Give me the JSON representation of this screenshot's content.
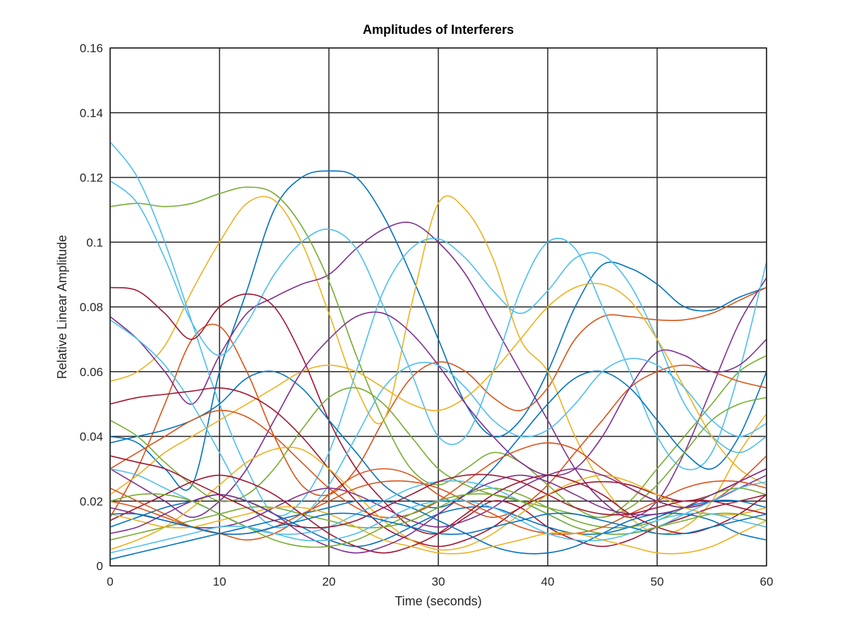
{
  "chart_data": {
    "type": "line",
    "title": "Amplitudes of Interferers",
    "xlabel": "Time (seconds)",
    "ylabel": "Relative Linear Amplitude",
    "xlim": [
      0,
      60
    ],
    "ylim": [
      0,
      0.16
    ],
    "x_ticks": [
      0,
      10,
      20,
      30,
      40,
      50,
      60
    ],
    "x_tick_labels": [
      "0",
      "10",
      "20",
      "30",
      "40",
      "50",
      "60"
    ],
    "y_ticks": [
      0,
      0.02,
      0.04,
      0.06,
      0.08,
      0.1,
      0.12,
      0.14,
      0.16
    ],
    "y_tick_labels": [
      "0",
      "0.02",
      "0.04",
      "0.06",
      "0.08",
      "0.1",
      "0.12",
      "0.14",
      "0.16"
    ],
    "grid": true,
    "legend": "none",
    "x": [
      0,
      2.5,
      5,
      7.5,
      10,
      12.5,
      15,
      17.5,
      20,
      22.5,
      25,
      27.5,
      30,
      32.5,
      35,
      37.5,
      40,
      42.5,
      45,
      47.5,
      50,
      52.5,
      55,
      57.5,
      60
    ],
    "series": [
      {
        "color": "#0072BD",
        "values": [
          0.04,
          0.038,
          0.03,
          0.025,
          0.06,
          0.085,
          0.11,
          0.12,
          0.122,
          0.12,
          0.108,
          0.09,
          0.07,
          0.05,
          0.04,
          0.045,
          0.06,
          0.08,
          0.093,
          0.092,
          0.087,
          0.08,
          0.079,
          0.083,
          0.086
        ]
      },
      {
        "color": "#D95319",
        "values": [
          0.015,
          0.03,
          0.05,
          0.07,
          0.074,
          0.06,
          0.04,
          0.025,
          0.022,
          0.03,
          0.045,
          0.058,
          0.063,
          0.06,
          0.052,
          0.048,
          0.055,
          0.07,
          0.077,
          0.077,
          0.076,
          0.076,
          0.078,
          0.082,
          0.086
        ]
      },
      {
        "color": "#EDB120",
        "values": [
          0.057,
          0.06,
          0.068,
          0.085,
          0.1,
          0.112,
          0.113,
          0.1,
          0.078,
          0.055,
          0.045,
          0.08,
          0.112,
          0.11,
          0.095,
          0.07,
          0.06,
          0.04,
          0.025,
          0.015,
          0.01,
          0.012,
          0.02,
          0.035,
          0.047
        ]
      },
      {
        "color": "#7E2F8E",
        "values": [
          0.077,
          0.07,
          0.06,
          0.05,
          0.065,
          0.078,
          0.083,
          0.087,
          0.09,
          0.098,
          0.104,
          0.106,
          0.1,
          0.09,
          0.075,
          0.06,
          0.045,
          0.03,
          0.02,
          0.015,
          0.02,
          0.035,
          0.055,
          0.075,
          0.089
        ]
      },
      {
        "color": "#77AC30",
        "values": [
          0.111,
          0.112,
          0.111,
          0.112,
          0.115,
          0.117,
          0.115,
          0.105,
          0.088,
          0.065,
          0.045,
          0.03,
          0.025,
          0.03,
          0.035,
          0.032,
          0.025,
          0.018,
          0.015,
          0.02,
          0.03,
          0.04,
          0.05,
          0.06,
          0.065
        ]
      },
      {
        "color": "#4DBEEE",
        "values": [
          0.131,
          0.12,
          0.1,
          0.075,
          0.05,
          0.03,
          0.016,
          0.02,
          0.035,
          0.06,
          0.085,
          0.098,
          0.101,
          0.095,
          0.085,
          0.078,
          0.085,
          0.095,
          0.096,
          0.087,
          0.07,
          0.05,
          0.04,
          0.035,
          0.04
        ]
      },
      {
        "color": "#4DBEEE",
        "values": [
          0.119,
          0.112,
          0.095,
          0.075,
          0.065,
          0.075,
          0.09,
          0.1,
          0.104,
          0.098,
          0.08,
          0.06,
          0.04,
          0.04,
          0.06,
          0.085,
          0.1,
          0.098,
          0.08,
          0.06,
          0.04,
          0.03,
          0.035,
          0.06,
          0.094
        ]
      },
      {
        "color": "#A2142F",
        "values": [
          0.086,
          0.085,
          0.078,
          0.07,
          0.08,
          0.084,
          0.08,
          0.065,
          0.045,
          0.03,
          0.02,
          0.012,
          0.01,
          0.015,
          0.02,
          0.018,
          0.012,
          0.008,
          0.006,
          0.008,
          0.012,
          0.015,
          0.018,
          0.02,
          0.022
        ]
      },
      {
        "color": "#0072BD",
        "values": [
          0.038,
          0.04,
          0.042,
          0.045,
          0.05,
          0.058,
          0.06,
          0.055,
          0.045,
          0.035,
          0.025,
          0.02,
          0.018,
          0.022,
          0.03,
          0.04,
          0.05,
          0.058,
          0.06,
          0.055,
          0.045,
          0.035,
          0.03,
          0.04,
          0.06
        ]
      },
      {
        "color": "#D95319",
        "values": [
          0.02,
          0.018,
          0.015,
          0.012,
          0.01,
          0.008,
          0.01,
          0.015,
          0.022,
          0.028,
          0.03,
          0.028,
          0.022,
          0.018,
          0.015,
          0.018,
          0.025,
          0.035,
          0.045,
          0.055,
          0.06,
          0.062,
          0.06,
          0.057,
          0.055
        ]
      },
      {
        "color": "#EDB120",
        "values": [
          0.022,
          0.028,
          0.035,
          0.04,
          0.045,
          0.05,
          0.055,
          0.06,
          0.062,
          0.06,
          0.055,
          0.05,
          0.048,
          0.052,
          0.06,
          0.07,
          0.08,
          0.086,
          0.087,
          0.082,
          0.07,
          0.055,
          0.04,
          0.03,
          0.025
        ]
      },
      {
        "color": "#7E2F8E",
        "values": [
          0.03,
          0.025,
          0.02,
          0.015,
          0.02,
          0.03,
          0.045,
          0.06,
          0.07,
          0.077,
          0.078,
          0.072,
          0.062,
          0.05,
          0.04,
          0.032,
          0.028,
          0.03,
          0.04,
          0.055,
          0.066,
          0.065,
          0.06,
          0.062,
          0.07
        ]
      },
      {
        "color": "#77AC30",
        "values": [
          0.045,
          0.04,
          0.032,
          0.025,
          0.02,
          0.022,
          0.03,
          0.042,
          0.052,
          0.055,
          0.05,
          0.04,
          0.03,
          0.025,
          0.022,
          0.02,
          0.018,
          0.016,
          0.015,
          0.018,
          0.025,
          0.035,
          0.045,
          0.05,
          0.052
        ]
      },
      {
        "color": "#4DBEEE",
        "values": [
          0.076,
          0.07,
          0.062,
          0.05,
          0.035,
          0.02,
          0.012,
          0.015,
          0.025,
          0.04,
          0.055,
          0.062,
          0.062,
          0.055,
          0.045,
          0.04,
          0.042,
          0.05,
          0.06,
          0.064,
          0.062,
          0.055,
          0.045,
          0.04,
          0.044
        ]
      },
      {
        "color": "#A2142F",
        "values": [
          0.05,
          0.052,
          0.053,
          0.054,
          0.055,
          0.053,
          0.048,
          0.04,
          0.03,
          0.02,
          0.012,
          0.008,
          0.006,
          0.008,
          0.012,
          0.018,
          0.022,
          0.025,
          0.026,
          0.025,
          0.022,
          0.02,
          0.022,
          0.026,
          0.03
        ]
      },
      {
        "color": "#0072BD",
        "values": [
          0.012,
          0.015,
          0.018,
          0.02,
          0.022,
          0.02,
          0.016,
          0.012,
          0.008,
          0.006,
          0.008,
          0.012,
          0.016,
          0.018,
          0.018,
          0.015,
          0.012,
          0.01,
          0.01,
          0.012,
          0.015,
          0.018,
          0.02,
          0.02,
          0.018
        ]
      },
      {
        "color": "#D95319",
        "values": [
          0.03,
          0.035,
          0.04,
          0.045,
          0.048,
          0.046,
          0.04,
          0.032,
          0.024,
          0.018,
          0.015,
          0.016,
          0.02,
          0.026,
          0.032,
          0.036,
          0.038,
          0.036,
          0.03,
          0.024,
          0.02,
          0.018,
          0.02,
          0.026,
          0.034
        ]
      },
      {
        "color": "#EDB120",
        "values": [
          0.005,
          0.008,
          0.012,
          0.018,
          0.025,
          0.032,
          0.036,
          0.036,
          0.03,
          0.022,
          0.014,
          0.008,
          0.005,
          0.006,
          0.01,
          0.016,
          0.022,
          0.026,
          0.028,
          0.026,
          0.022,
          0.018,
          0.016,
          0.016,
          0.018
        ]
      },
      {
        "color": "#7E2F8E",
        "values": [
          0.018,
          0.016,
          0.014,
          0.012,
          0.012,
          0.014,
          0.018,
          0.022,
          0.024,
          0.022,
          0.018,
          0.014,
          0.012,
          0.014,
          0.018,
          0.024,
          0.028,
          0.03,
          0.028,
          0.024,
          0.02,
          0.018,
          0.02,
          0.024,
          0.028
        ]
      },
      {
        "color": "#77AC30",
        "values": [
          0.008,
          0.01,
          0.012,
          0.014,
          0.016,
          0.018,
          0.018,
          0.016,
          0.014,
          0.012,
          0.012,
          0.014,
          0.018,
          0.022,
          0.024,
          0.022,
          0.018,
          0.014,
          0.012,
          0.012,
          0.014,
          0.018,
          0.022,
          0.024,
          0.022
        ]
      },
      {
        "color": "#4DBEEE",
        "values": [
          0.03,
          0.028,
          0.024,
          0.02,
          0.016,
          0.012,
          0.01,
          0.01,
          0.012,
          0.016,
          0.02,
          0.024,
          0.026,
          0.026,
          0.024,
          0.02,
          0.016,
          0.012,
          0.01,
          0.01,
          0.012,
          0.016,
          0.02,
          0.024,
          0.026
        ]
      },
      {
        "color": "#A2142F",
        "values": [
          0.014,
          0.018,
          0.022,
          0.026,
          0.028,
          0.026,
          0.022,
          0.016,
          0.01,
          0.006,
          0.004,
          0.006,
          0.01,
          0.016,
          0.022,
          0.026,
          0.028,
          0.026,
          0.022,
          0.016,
          0.012,
          0.01,
          0.012,
          0.016,
          0.022
        ]
      },
      {
        "color": "#0072BD",
        "values": [
          0.002,
          0.004,
          0.006,
          0.008,
          0.01,
          0.012,
          0.014,
          0.016,
          0.018,
          0.02,
          0.02,
          0.018,
          0.014,
          0.01,
          0.006,
          0.004,
          0.004,
          0.006,
          0.01,
          0.014,
          0.016,
          0.016,
          0.014,
          0.01,
          0.008
        ]
      },
      {
        "color": "#D95319",
        "values": [
          0.024,
          0.02,
          0.016,
          0.012,
          0.01,
          0.01,
          0.012,
          0.016,
          0.02,
          0.024,
          0.026,
          0.026,
          0.024,
          0.02,
          0.016,
          0.012,
          0.01,
          0.01,
          0.012,
          0.016,
          0.02,
          0.024,
          0.026,
          0.026,
          0.024
        ]
      },
      {
        "color": "#EDB120",
        "values": [
          0.016,
          0.014,
          0.012,
          0.012,
          0.014,
          0.016,
          0.018,
          0.018,
          0.016,
          0.012,
          0.008,
          0.006,
          0.004,
          0.004,
          0.006,
          0.008,
          0.01,
          0.01,
          0.008,
          0.006,
          0.004,
          0.004,
          0.006,
          0.01,
          0.014
        ]
      },
      {
        "color": "#7E2F8E",
        "values": [
          0.01,
          0.012,
          0.016,
          0.02,
          0.022,
          0.02,
          0.016,
          0.01,
          0.006,
          0.004,
          0.006,
          0.01,
          0.016,
          0.022,
          0.026,
          0.028,
          0.026,
          0.022,
          0.018,
          0.016,
          0.016,
          0.018,
          0.022,
          0.026,
          0.03
        ]
      },
      {
        "color": "#77AC30",
        "values": [
          0.02,
          0.022,
          0.022,
          0.02,
          0.016,
          0.012,
          0.008,
          0.006,
          0.006,
          0.008,
          0.012,
          0.016,
          0.02,
          0.022,
          0.022,
          0.02,
          0.016,
          0.012,
          0.01,
          0.01,
          0.012,
          0.014,
          0.016,
          0.016,
          0.014
        ]
      },
      {
        "color": "#4DBEEE",
        "values": [
          0.004,
          0.006,
          0.008,
          0.01,
          0.012,
          0.012,
          0.01,
          0.008,
          0.008,
          0.01,
          0.014,
          0.018,
          0.02,
          0.02,
          0.018,
          0.014,
          0.01,
          0.008,
          0.008,
          0.01,
          0.014,
          0.016,
          0.016,
          0.014,
          0.012
        ]
      },
      {
        "color": "#A2142F",
        "values": [
          0.034,
          0.032,
          0.03,
          0.026,
          0.022,
          0.018,
          0.014,
          0.012,
          0.012,
          0.014,
          0.018,
          0.022,
          0.026,
          0.028,
          0.028,
          0.026,
          0.022,
          0.018,
          0.016,
          0.016,
          0.018,
          0.02,
          0.02,
          0.018,
          0.016
        ]
      },
      {
        "color": "#0072BD",
        "values": [
          0.016,
          0.016,
          0.014,
          0.012,
          0.01,
          0.01,
          0.012,
          0.014,
          0.016,
          0.016,
          0.014,
          0.012,
          0.01,
          0.01,
          0.012,
          0.014,
          0.016,
          0.016,
          0.014,
          0.012,
          0.01,
          0.01,
          0.012,
          0.014,
          0.016
        ]
      }
    ]
  }
}
